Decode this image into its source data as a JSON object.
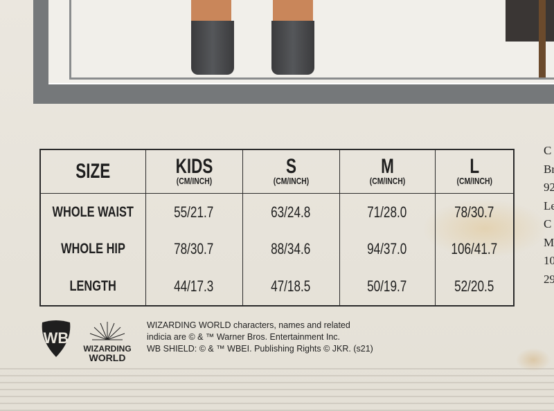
{
  "size_chart": {
    "header": {
      "size": "SIZE",
      "columns": [
        {
          "label": "KIDS",
          "unit": "(CM/INCH)"
        },
        {
          "label": "S",
          "unit": "(CM/INCH)"
        },
        {
          "label": "M",
          "unit": "(CM/INCH)"
        },
        {
          "label": "L",
          "unit": "(CM/INCH)"
        }
      ]
    },
    "rows": [
      {
        "label": "WHOLE WAIST",
        "values": [
          "55/21.7",
          "63/24.8",
          "71/28.0",
          "78/30.7"
        ]
      },
      {
        "label": "WHOLE HIP",
        "values": [
          "78/30.7",
          "88/34.6",
          "94/37.0",
          "106/41.7"
        ]
      },
      {
        "label": "LENGTH",
        "values": [
          "44/17.3",
          "47/18.5",
          "50/19.7",
          "52/20.5"
        ]
      }
    ]
  },
  "side_text": [
    "C",
    "Br",
    "92",
    "Le",
    "C",
    "M",
    "10",
    "29"
  ],
  "logos": {
    "wb": "WB",
    "wizarding_world": [
      "WIZARDING",
      "WORLD"
    ]
  },
  "legal": [
    "WIZARDING WORLD characters, names and related",
    "indicia are © & ™ Warner Bros. Entertainment Inc.",
    "WB SHIELD: © & ™ WBEI. Publishing Rights © JKR. (s21)"
  ]
}
